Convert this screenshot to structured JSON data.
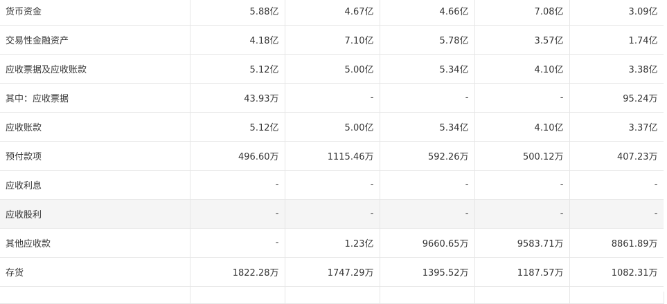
{
  "table": {
    "rows": [
      {
        "label": "货币资金",
        "values": [
          "5.88亿",
          "4.67亿",
          "4.66亿",
          "7.08亿",
          "3.09亿"
        ]
      },
      {
        "label": "交易性金融资产",
        "values": [
          "4.18亿",
          "7.10亿",
          "5.78亿",
          "3.57亿",
          "1.74亿"
        ]
      },
      {
        "label": "应收票据及应收账款",
        "values": [
          "5.12亿",
          "5.00亿",
          "5.34亿",
          "4.10亿",
          "3.38亿"
        ]
      },
      {
        "label": "其中：应收票据",
        "values": [
          "43.93万",
          "-",
          "-",
          "-",
          "95.24万"
        ]
      },
      {
        "label": "应收账款",
        "values": [
          "5.12亿",
          "5.00亿",
          "5.34亿",
          "4.10亿",
          "3.37亿"
        ]
      },
      {
        "label": "预付款项",
        "values": [
          "496.60万",
          "1115.46万",
          "592.26万",
          "500.12万",
          "407.23万"
        ]
      },
      {
        "label": "应收利息",
        "values": [
          "-",
          "-",
          "-",
          "-",
          "-"
        ]
      },
      {
        "label": "应收股利",
        "values": [
          "-",
          "-",
          "-",
          "-",
          "-"
        ],
        "highlighted": true
      },
      {
        "label": "其他应收款",
        "values": [
          "-",
          "1.23亿",
          "9660.65万",
          "9583.71万",
          "8861.89万"
        ]
      },
      {
        "label": "存货",
        "values": [
          "1822.28万",
          "1747.29万",
          "1395.52万",
          "1187.57万",
          "1082.31万"
        ]
      }
    ]
  }
}
